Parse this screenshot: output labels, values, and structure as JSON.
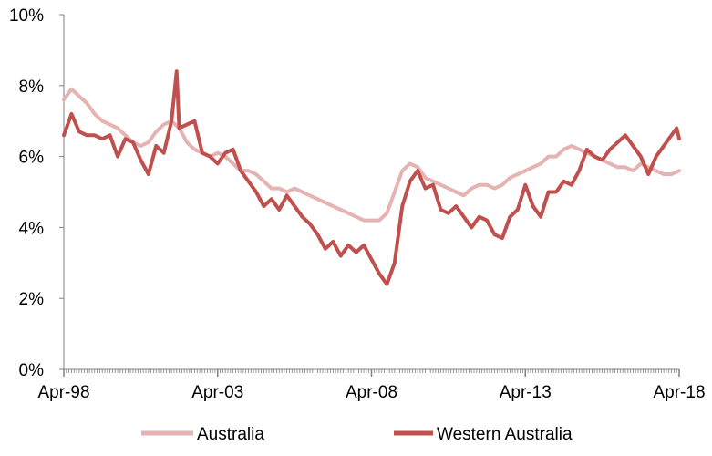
{
  "chart_data": {
    "type": "line",
    "title": "",
    "xlabel": "",
    "ylabel": "",
    "x_range": [
      "1998-04",
      "2018-04"
    ],
    "ylim": [
      0,
      10
    ],
    "y_tick_labels": [
      "0%",
      "2%",
      "4%",
      "6%",
      "8%",
      "10%"
    ],
    "y_tick_values": [
      0,
      2,
      4,
      6,
      8,
      10
    ],
    "x_tick_labels": [
      "Apr-98",
      "Apr-03",
      "Apr-08",
      "Apr-13",
      "Apr-18"
    ],
    "x_tick_dates": [
      "1998-04",
      "2003-04",
      "2008-04",
      "2013-04",
      "2018-04"
    ],
    "grid": false,
    "legend_position": "bottom",
    "series": [
      {
        "name": "Australia",
        "color": "#e6b3b3",
        "points": [
          [
            "1998-04",
            7.6
          ],
          [
            "1998-07",
            7.9
          ],
          [
            "1998-10",
            7.7
          ],
          [
            "1999-01",
            7.5
          ],
          [
            "1999-04",
            7.2
          ],
          [
            "1999-07",
            7.0
          ],
          [
            "1999-10",
            6.9
          ],
          [
            "2000-01",
            6.8
          ],
          [
            "2000-04",
            6.6
          ],
          [
            "2000-07",
            6.4
          ],
          [
            "2000-10",
            6.3
          ],
          [
            "2001-01",
            6.4
          ],
          [
            "2001-04",
            6.7
          ],
          [
            "2001-07",
            6.9
          ],
          [
            "2001-10",
            7.0
          ],
          [
            "2002-01",
            6.8
          ],
          [
            "2002-04",
            6.4
          ],
          [
            "2002-07",
            6.2
          ],
          [
            "2002-10",
            6.1
          ],
          [
            "2003-01",
            6.0
          ],
          [
            "2003-04",
            6.1
          ],
          [
            "2003-07",
            6.0
          ],
          [
            "2003-10",
            5.8
          ],
          [
            "2004-01",
            5.6
          ],
          [
            "2004-04",
            5.6
          ],
          [
            "2004-07",
            5.5
          ],
          [
            "2004-10",
            5.3
          ],
          [
            "2005-01",
            5.1
          ],
          [
            "2005-04",
            5.1
          ],
          [
            "2005-07",
            5.0
          ],
          [
            "2005-10",
            5.1
          ],
          [
            "2006-01",
            5.0
          ],
          [
            "2006-04",
            4.9
          ],
          [
            "2006-07",
            4.8
          ],
          [
            "2006-10",
            4.7
          ],
          [
            "2007-01",
            4.6
          ],
          [
            "2007-04",
            4.5
          ],
          [
            "2007-07",
            4.4
          ],
          [
            "2007-10",
            4.3
          ],
          [
            "2008-01",
            4.2
          ],
          [
            "2008-04",
            4.2
          ],
          [
            "2008-07",
            4.2
          ],
          [
            "2008-10",
            4.4
          ],
          [
            "2009-01",
            5.0
          ],
          [
            "2009-04",
            5.6
          ],
          [
            "2009-07",
            5.8
          ],
          [
            "2009-10",
            5.7
          ],
          [
            "2010-01",
            5.4
          ],
          [
            "2010-04",
            5.3
          ],
          [
            "2010-07",
            5.2
          ],
          [
            "2010-10",
            5.1
          ],
          [
            "2011-01",
            5.0
          ],
          [
            "2011-04",
            4.9
          ],
          [
            "2011-07",
            5.1
          ],
          [
            "2011-10",
            5.2
          ],
          [
            "2012-01",
            5.2
          ],
          [
            "2012-04",
            5.1
          ],
          [
            "2012-07",
            5.2
          ],
          [
            "2012-10",
            5.4
          ],
          [
            "2013-01",
            5.5
          ],
          [
            "2013-04",
            5.6
          ],
          [
            "2013-07",
            5.7
          ],
          [
            "2013-10",
            5.8
          ],
          [
            "2014-01",
            6.0
          ],
          [
            "2014-04",
            6.0
          ],
          [
            "2014-07",
            6.2
          ],
          [
            "2014-10",
            6.3
          ],
          [
            "2015-01",
            6.2
          ],
          [
            "2015-04",
            6.1
          ],
          [
            "2015-07",
            6.0
          ],
          [
            "2015-10",
            5.9
          ],
          [
            "2016-01",
            5.8
          ],
          [
            "2016-04",
            5.7
          ],
          [
            "2016-07",
            5.7
          ],
          [
            "2016-10",
            5.6
          ],
          [
            "2017-01",
            5.8
          ],
          [
            "2017-04",
            5.7
          ],
          [
            "2017-07",
            5.6
          ],
          [
            "2017-10",
            5.5
          ],
          [
            "2018-01",
            5.5
          ],
          [
            "2018-04",
            5.6
          ]
        ]
      },
      {
        "name": "Western Australia",
        "color": "#c0504d",
        "points": [
          [
            "1998-04",
            6.6
          ],
          [
            "1998-07",
            7.2
          ],
          [
            "1998-10",
            6.7
          ],
          [
            "1999-01",
            6.6
          ],
          [
            "1999-04",
            6.6
          ],
          [
            "1999-07",
            6.5
          ],
          [
            "1999-10",
            6.6
          ],
          [
            "2000-01",
            6.0
          ],
          [
            "2000-04",
            6.5
          ],
          [
            "2000-07",
            6.4
          ],
          [
            "2000-10",
            5.9
          ],
          [
            "2001-01",
            5.5
          ],
          [
            "2001-04",
            6.3
          ],
          [
            "2001-07",
            6.1
          ],
          [
            "2001-10",
            7.0
          ],
          [
            "2001-12",
            8.4
          ],
          [
            "2002-01",
            6.8
          ],
          [
            "2002-04",
            6.9
          ],
          [
            "2002-07",
            7.0
          ],
          [
            "2002-10",
            6.1
          ],
          [
            "2003-01",
            6.0
          ],
          [
            "2003-04",
            5.8
          ],
          [
            "2003-07",
            6.1
          ],
          [
            "2003-10",
            6.2
          ],
          [
            "2004-01",
            5.6
          ],
          [
            "2004-04",
            5.3
          ],
          [
            "2004-07",
            5.0
          ],
          [
            "2004-10",
            4.6
          ],
          [
            "2005-01",
            4.8
          ],
          [
            "2005-04",
            4.5
          ],
          [
            "2005-07",
            4.9
          ],
          [
            "2005-10",
            4.6
          ],
          [
            "2006-01",
            4.3
          ],
          [
            "2006-04",
            4.1
          ],
          [
            "2006-07",
            3.8
          ],
          [
            "2006-10",
            3.4
          ],
          [
            "2007-01",
            3.6
          ],
          [
            "2007-04",
            3.2
          ],
          [
            "2007-07",
            3.5
          ],
          [
            "2007-10",
            3.3
          ],
          [
            "2008-01",
            3.5
          ],
          [
            "2008-04",
            3.1
          ],
          [
            "2008-07",
            2.7
          ],
          [
            "2008-10",
            2.4
          ],
          [
            "2009-01",
            3.0
          ],
          [
            "2009-04",
            4.6
          ],
          [
            "2009-07",
            5.3
          ],
          [
            "2009-10",
            5.6
          ],
          [
            "2010-01",
            5.1
          ],
          [
            "2010-04",
            5.2
          ],
          [
            "2010-07",
            4.5
          ],
          [
            "2010-10",
            4.4
          ],
          [
            "2011-01",
            4.6
          ],
          [
            "2011-04",
            4.3
          ],
          [
            "2011-07",
            4.0
          ],
          [
            "2011-10",
            4.3
          ],
          [
            "2012-01",
            4.2
          ],
          [
            "2012-04",
            3.8
          ],
          [
            "2012-07",
            3.7
          ],
          [
            "2012-10",
            4.3
          ],
          [
            "2013-01",
            4.5
          ],
          [
            "2013-04",
            5.2
          ],
          [
            "2013-07",
            4.6
          ],
          [
            "2013-10",
            4.3
          ],
          [
            "2014-01",
            5.0
          ],
          [
            "2014-04",
            5.0
          ],
          [
            "2014-07",
            5.3
          ],
          [
            "2014-10",
            5.2
          ],
          [
            "2015-01",
            5.6
          ],
          [
            "2015-04",
            6.2
          ],
          [
            "2015-07",
            6.0
          ],
          [
            "2015-10",
            5.9
          ],
          [
            "2016-01",
            6.2
          ],
          [
            "2016-04",
            6.4
          ],
          [
            "2016-07",
            6.6
          ],
          [
            "2016-10",
            6.3
          ],
          [
            "2017-01",
            6.0
          ],
          [
            "2017-04",
            5.5
          ],
          [
            "2017-07",
            6.0
          ],
          [
            "2017-10",
            6.3
          ],
          [
            "2018-01",
            6.6
          ],
          [
            "2018-03",
            6.8
          ],
          [
            "2018-04",
            6.5
          ]
        ]
      }
    ]
  }
}
